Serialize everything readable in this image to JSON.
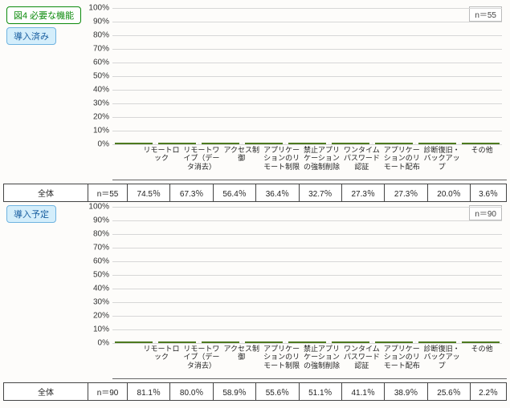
{
  "title_badge": {
    "label": "図4 必要な機能",
    "style": "b-green"
  },
  "y": {
    "min": 0,
    "max": 100,
    "step": 10,
    "suffix": "%"
  },
  "bar_color_top": "#8fd14c",
  "bar_color_bottom": "#7db63c",
  "bar_border": "#4d7a1f",
  "grid_color": "#d7d7d7",
  "categories": [
    "リモートロック",
    "リモートワイプ（データ消去）",
    "アクセス制御",
    "アプリケーションのリモート制限",
    "禁止アプリケーションの強制削除",
    "ワンタイムパスワード認証",
    "アプリケーションのリモート配布",
    "診断復旧・バックアップ",
    "その他"
  ],
  "sections": [
    {
      "key": "s1",
      "badge": {
        "label": "導入済み",
        "style": "b-blue"
      },
      "n_text": "n＝55",
      "n_cell": "n＝55",
      "row_label": "全体",
      "values": [
        74.5,
        67.3,
        56.4,
        36.4,
        32.7,
        27.3,
        27.3,
        20.0,
        3.6
      ],
      "value_labels": [
        "74.5％",
        "67.3％",
        "56.4％",
        "36.4％",
        "32.7％",
        "27.3％",
        "27.3％",
        "20.0％",
        "3.6％"
      ]
    },
    {
      "key": "s2",
      "badge": {
        "label": "導入予定",
        "style": "b-blue"
      },
      "n_text": "n＝90",
      "n_cell": "n＝90",
      "row_label": "全体",
      "values": [
        81.1,
        80.0,
        58.9,
        55.6,
        51.1,
        41.1,
        38.9,
        25.6,
        2.2
      ],
      "value_labels": [
        "81.1％",
        "80.0％",
        "58.9％",
        "55.6％",
        "51.1％",
        "41.1％",
        "38.9％",
        "25.6％",
        "2.2％"
      ]
    }
  ]
}
